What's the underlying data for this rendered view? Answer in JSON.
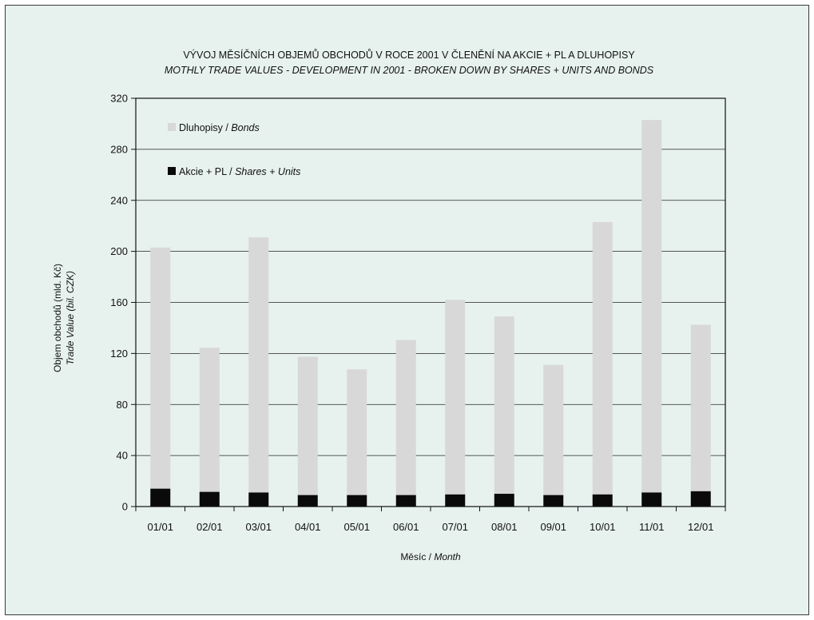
{
  "chart_data": {
    "type": "bar",
    "stacked": true,
    "title": "VÝVOJ MĚSÍČNÍCH OBJEMŮ OBCHODŮ V ROCE 2001 V ČLENĚNÍ NA AKCIE + PL A DLUHOPISY",
    "subtitle": "MOTHLY TRADE VALUES - DEVELOPMENT IN 2001 - BROKEN DOWN BY SHARES + UNITS AND BONDS",
    "xlabel": "Měsíc / ",
    "xlabel_italic": "Month",
    "ylabel": "Objem obchodů (mld. Kč)",
    "ylabel_italic": "Trade Value (bil. CZK)",
    "categories": [
      "01/01",
      "02/01",
      "03/01",
      "04/01",
      "05/01",
      "06/01",
      "07/01",
      "08/01",
      "09/01",
      "10/01",
      "11/01",
      "12/01"
    ],
    "series": [
      {
        "name": "Akcie + PL / ",
        "name_italic": "Shares + Units",
        "color": "#0a0a0a",
        "values": [
          14,
          11.5,
          11,
          9,
          9,
          9,
          9.5,
          10,
          9,
          9.5,
          11,
          12
        ]
      },
      {
        "name": "Dluhopisy / ",
        "name_italic": "Bonds",
        "color": "#d8d8d8",
        "values": [
          189,
          113,
          200,
          108.5,
          98.5,
          121.5,
          152.5,
          139,
          102,
          213.5,
          292,
          130.5
        ]
      }
    ],
    "yticks": [
      0,
      40,
      80,
      120,
      160,
      200,
      240,
      280,
      320
    ],
    "ylim": [
      0,
      320
    ],
    "grid": true,
    "legend_position": "top-left",
    "background": "#e7f2ef"
  }
}
